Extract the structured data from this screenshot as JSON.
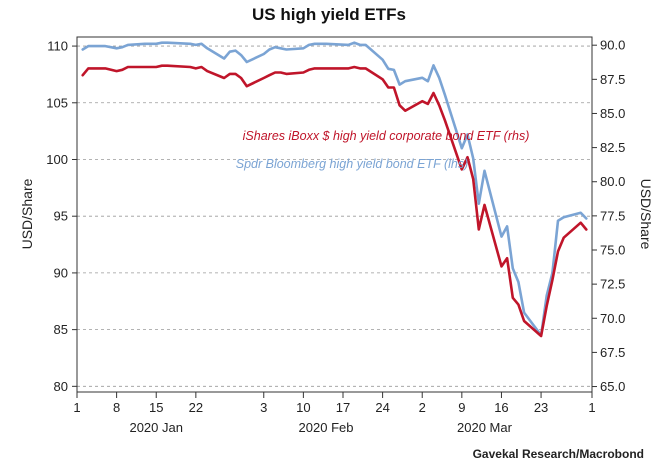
{
  "chart_data": {
    "type": "line",
    "title": "US high yield ETFs",
    "source": "Gavekal Research/Macrobond",
    "ylabel_left": "USD/Share",
    "ylabel_right": "USD/Share",
    "ylim_left": [
      79.5,
      110.8
    ],
    "ylim_right": [
      64.6,
      90.6
    ],
    "yticks_left": [
      "110",
      "105",
      "100",
      "95",
      "90",
      "85",
      "80"
    ],
    "yticks_right": [
      "90.0",
      "87.5",
      "85.0",
      "82.5",
      "80.0",
      "77.5",
      "75.0",
      "72.5",
      "70.0",
      "67.5",
      "65.0"
    ],
    "xlim": [
      "2020-01-01",
      "2020-04-01"
    ],
    "xtick_labels": [
      "1",
      "8",
      "15",
      "22",
      "3",
      "10",
      "17",
      "24",
      "2",
      "9",
      "16",
      "23",
      "1"
    ],
    "xtick_dates": [
      "2020-01-01",
      "2020-01-08",
      "2020-01-15",
      "2020-01-22",
      "2020-02-03",
      "2020-02-10",
      "2020-02-17",
      "2020-02-24",
      "2020-03-02",
      "2020-03-09",
      "2020-03-16",
      "2020-03-23",
      "2020-04-01"
    ],
    "month_labels": [
      {
        "text": "2020 Jan",
        "date": "2020-01-15"
      },
      {
        "text": "2020 Feb",
        "date": "2020-02-14"
      },
      {
        "text": "2020 Mar",
        "date": "2020-03-13"
      }
    ],
    "grid": "horizontal dashed",
    "series": [
      {
        "name": "iShares iBoxx $ high yield corporate bond ETF (rhs)",
        "axis": "right",
        "color": "#c0152a",
        "points": [
          [
            "2020-01-02",
            87.8
          ],
          [
            "2020-01-03",
            88.3
          ],
          [
            "2020-01-06",
            88.3
          ],
          [
            "2020-01-07",
            88.2
          ],
          [
            "2020-01-08",
            88.1
          ],
          [
            "2020-01-09",
            88.2
          ],
          [
            "2020-01-10",
            88.4
          ],
          [
            "2020-01-13",
            88.4
          ],
          [
            "2020-01-14",
            88.4
          ],
          [
            "2020-01-15",
            88.4
          ],
          [
            "2020-01-16",
            88.5
          ],
          [
            "2020-01-17",
            88.5
          ],
          [
            "2020-01-21",
            88.4
          ],
          [
            "2020-01-22",
            88.3
          ],
          [
            "2020-01-23",
            88.4
          ],
          [
            "2020-01-24",
            88.1
          ],
          [
            "2020-01-27",
            87.6
          ],
          [
            "2020-01-28",
            87.9
          ],
          [
            "2020-01-29",
            87.9
          ],
          [
            "2020-01-30",
            87.6
          ],
          [
            "2020-01-31",
            87.0
          ],
          [
            "2020-02-03",
            87.6
          ],
          [
            "2020-02-04",
            87.8
          ],
          [
            "2020-02-05",
            88.0
          ],
          [
            "2020-02-06",
            88.0
          ],
          [
            "2020-02-07",
            87.9
          ],
          [
            "2020-02-10",
            88.0
          ],
          [
            "2020-02-11",
            88.2
          ],
          [
            "2020-02-12",
            88.3
          ],
          [
            "2020-02-13",
            88.3
          ],
          [
            "2020-02-14",
            88.3
          ],
          [
            "2020-02-18",
            88.3
          ],
          [
            "2020-02-19",
            88.4
          ],
          [
            "2020-02-20",
            88.3
          ],
          [
            "2020-02-21",
            88.3
          ],
          [
            "2020-02-24",
            87.5
          ],
          [
            "2020-02-25",
            86.9
          ],
          [
            "2020-02-26",
            86.9
          ],
          [
            "2020-02-27",
            85.6
          ],
          [
            "2020-02-28",
            85.2
          ],
          [
            "2020-03-02",
            85.9
          ],
          [
            "2020-03-03",
            85.7
          ],
          [
            "2020-03-04",
            86.5
          ],
          [
            "2020-03-05",
            85.6
          ],
          [
            "2020-03-06",
            84.5
          ],
          [
            "2020-03-09",
            80.9
          ],
          [
            "2020-03-10",
            81.8
          ],
          [
            "2020-03-11",
            80.2
          ],
          [
            "2020-03-12",
            76.5
          ],
          [
            "2020-03-13",
            78.3
          ],
          [
            "2020-03-16",
            73.8
          ],
          [
            "2020-03-17",
            74.4
          ],
          [
            "2020-03-18",
            71.5
          ],
          [
            "2020-03-19",
            71.0
          ],
          [
            "2020-03-20",
            69.8
          ],
          [
            "2020-03-23",
            68.7
          ],
          [
            "2020-03-24",
            70.9
          ],
          [
            "2020-03-25",
            72.8
          ],
          [
            "2020-03-26",
            74.9
          ],
          [
            "2020-03-27",
            75.9
          ],
          [
            "2020-03-30",
            77.0
          ],
          [
            "2020-03-31",
            76.5
          ]
        ]
      },
      {
        "name": "Spdr Bloomberg high yield bond ETF (lhs)",
        "axis": "left",
        "color": "#7ba4d4",
        "points": [
          [
            "2020-01-02",
            109.7
          ],
          [
            "2020-01-03",
            110.0
          ],
          [
            "2020-01-06",
            110.0
          ],
          [
            "2020-01-07",
            109.9
          ],
          [
            "2020-01-08",
            109.8
          ],
          [
            "2020-01-09",
            109.9
          ],
          [
            "2020-01-10",
            110.1
          ],
          [
            "2020-01-13",
            110.2
          ],
          [
            "2020-01-14",
            110.2
          ],
          [
            "2020-01-15",
            110.2
          ],
          [
            "2020-01-16",
            110.3
          ],
          [
            "2020-01-17",
            110.3
          ],
          [
            "2020-01-21",
            110.2
          ],
          [
            "2020-01-22",
            110.1
          ],
          [
            "2020-01-23",
            110.2
          ],
          [
            "2020-01-24",
            109.8
          ],
          [
            "2020-01-27",
            108.9
          ],
          [
            "2020-01-28",
            109.5
          ],
          [
            "2020-01-29",
            109.6
          ],
          [
            "2020-01-30",
            109.2
          ],
          [
            "2020-01-31",
            108.6
          ],
          [
            "2020-02-03",
            109.3
          ],
          [
            "2020-02-04",
            109.7
          ],
          [
            "2020-02-05",
            109.9
          ],
          [
            "2020-02-06",
            109.8
          ],
          [
            "2020-02-07",
            109.7
          ],
          [
            "2020-02-10",
            109.8
          ],
          [
            "2020-02-11",
            110.1
          ],
          [
            "2020-02-12",
            110.2
          ],
          [
            "2020-02-13",
            110.2
          ],
          [
            "2020-02-14",
            110.2
          ],
          [
            "2020-02-18",
            110.1
          ],
          [
            "2020-02-19",
            110.3
          ],
          [
            "2020-02-20",
            110.1
          ],
          [
            "2020-02-21",
            110.1
          ],
          [
            "2020-02-24",
            108.8
          ],
          [
            "2020-02-25",
            108.0
          ],
          [
            "2020-02-26",
            107.9
          ],
          [
            "2020-02-27",
            106.6
          ],
          [
            "2020-02-28",
            106.9
          ],
          [
            "2020-03-02",
            107.2
          ],
          [
            "2020-03-03",
            106.9
          ],
          [
            "2020-03-04",
            108.3
          ],
          [
            "2020-03-05",
            107.2
          ],
          [
            "2020-03-06",
            105.7
          ],
          [
            "2020-03-09",
            101.0
          ],
          [
            "2020-03-10",
            102.2
          ],
          [
            "2020-03-11",
            100.1
          ],
          [
            "2020-03-12",
            96.1
          ],
          [
            "2020-03-13",
            99.0
          ],
          [
            "2020-03-16",
            93.2
          ],
          [
            "2020-03-17",
            94.1
          ],
          [
            "2020-03-18",
            90.4
          ],
          [
            "2020-03-19",
            89.2
          ],
          [
            "2020-03-20",
            86.5
          ],
          [
            "2020-03-23",
            84.5
          ],
          [
            "2020-03-24",
            88.0
          ],
          [
            "2020-03-25",
            90.0
          ],
          [
            "2020-03-26",
            94.6
          ],
          [
            "2020-03-27",
            94.9
          ],
          [
            "2020-03-30",
            95.3
          ],
          [
            "2020-03-31",
            94.8
          ]
        ]
      }
    ]
  }
}
